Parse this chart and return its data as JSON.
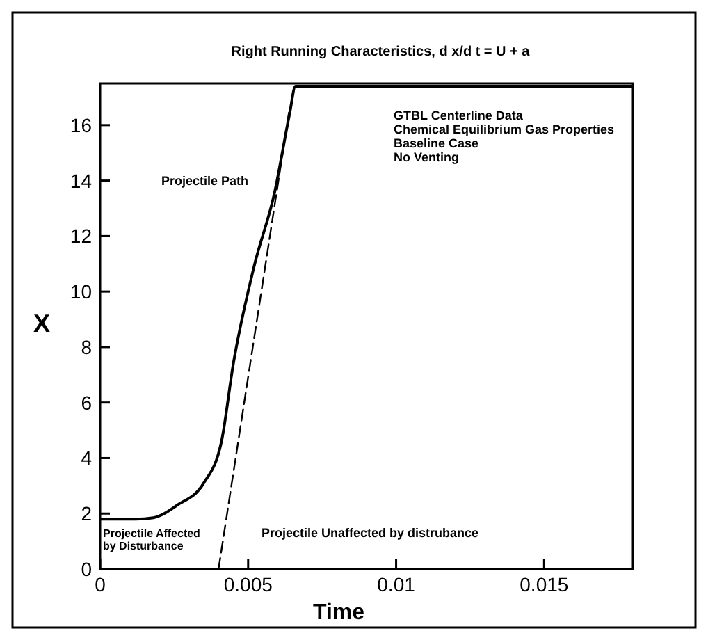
{
  "chart_data": {
    "type": "line",
    "title": "Right Running Characteristics, d x/d t = U + a",
    "xlabel": "Time",
    "ylabel": "X",
    "xlim": [
      0,
      0.018
    ],
    "ylim": [
      0,
      17.5
    ],
    "xticks": [
      0,
      0.005,
      0.01,
      0.015
    ],
    "yticks": [
      0,
      2,
      4,
      6,
      8,
      10,
      12,
      14,
      16
    ],
    "series": [
      {
        "color": "#000000",
        "line_style": "solid",
        "x": [
          0,
          0.0012,
          0.0018,
          0.0026,
          0.0035,
          0.0041,
          0.0045,
          0.0052,
          0.0059,
          0.0064,
          0.0066,
          0.018
        ],
        "values": [
          1.8,
          1.8,
          1.85,
          2.3,
          3.1,
          4.6,
          7.4,
          10.9,
          13.6,
          16.4,
          17.4,
          17.4
        ]
      },
      {
        "color": "#000000",
        "line_style": "dashed",
        "x": [
          0.004,
          0.0064
        ],
        "values": [
          0,
          16.6
        ]
      }
    ],
    "annotations": [
      "Projectile Path",
      "GTBL Centerline Data\nChemical Equilibrium Gas Properties\nBaseline Case\nNo Venting",
      "Projectile Affected\nby Disturbance",
      "Projectile Unaffected by distrubance"
    ]
  }
}
